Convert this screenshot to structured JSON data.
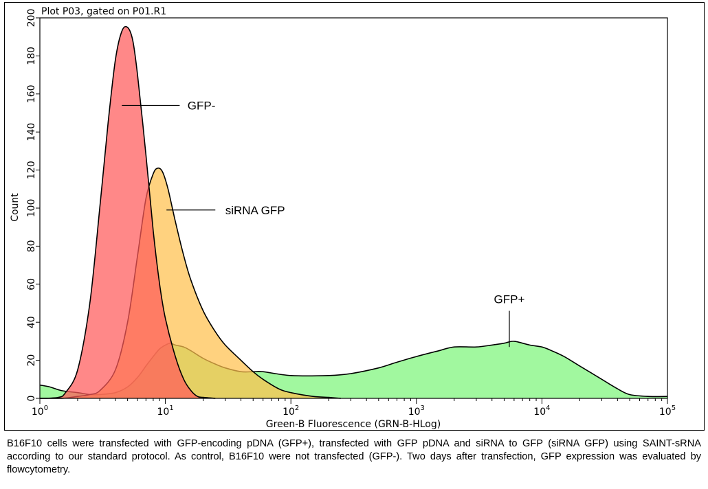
{
  "chart_data": {
    "type": "area",
    "title": "Plot P03, gated on P01.R1",
    "xlabel": "Green-B Fluorescence (GRN-B-HLog)",
    "ylabel": "Count",
    "x_scale": "log",
    "xlim": [
      1,
      100000
    ],
    "ylim": [
      0,
      200
    ],
    "x_ticks": [
      {
        "base": "10",
        "exp": "0"
      },
      {
        "base": "10",
        "exp": "1"
      },
      {
        "base": "10",
        "exp": "2"
      },
      {
        "base": "10",
        "exp": "3"
      },
      {
        "base": "10",
        "exp": "4"
      },
      {
        "base": "10",
        "exp": "5"
      }
    ],
    "y_ticks": [
      "0",
      "20",
      "40",
      "60",
      "80",
      "100",
      "120",
      "140",
      "160",
      "180",
      "200"
    ],
    "grid": false,
    "series": [
      {
        "name": "GFP+",
        "color": "#7df57a",
        "x": [
          1,
          1.2,
          1.5,
          2,
          2.5,
          3,
          4,
          5,
          6,
          7,
          8,
          9,
          10,
          11,
          12,
          14,
          16,
          20,
          25,
          30,
          40,
          50,
          60,
          100,
          200,
          300,
          500,
          700,
          1000,
          1500,
          2000,
          3000,
          4000,
          5000,
          6000,
          8000,
          10000,
          12000,
          15000,
          20000,
          30000,
          40000,
          50000,
          70000,
          100000
        ],
        "values": [
          7,
          6,
          4,
          3,
          2,
          2,
          3,
          6,
          11,
          17,
          22,
          26,
          28,
          29,
          28,
          27,
          25,
          21,
          18,
          16,
          14,
          14,
          14,
          12,
          12,
          13,
          16,
          19,
          22,
          25,
          27,
          27,
          28,
          29,
          30,
          28,
          27,
          25,
          22,
          17,
          10,
          5,
          2,
          1,
          1
        ]
      },
      {
        "name": "siRNA GFP",
        "color": "#ffc04d",
        "x": [
          1,
          1.5,
          2,
          2.5,
          3,
          4,
          5,
          6,
          7,
          8,
          8.7,
          9.5,
          10.5,
          12,
          14,
          16,
          20,
          25,
          30,
          40,
          50,
          60,
          80,
          100,
          150,
          200,
          250
        ],
        "values": [
          0,
          0,
          1,
          2,
          4,
          15,
          40,
          75,
          105,
          118,
          121,
          119,
          110,
          93,
          75,
          62,
          46,
          35,
          28,
          20,
          14,
          10,
          5,
          3,
          1,
          0.5,
          0
        ]
      },
      {
        "name": "GFP-",
        "color": "#ff5a5a",
        "x": [
          1,
          1.4,
          1.6,
          2,
          2.5,
          3,
          3.5,
          4,
          4.5,
          5,
          5.5,
          6,
          7,
          8,
          9,
          10,
          12,
          14,
          16,
          18,
          20,
          25
        ],
        "values": [
          0,
          0.5,
          3,
          15,
          50,
          100,
          145,
          178,
          193,
          195,
          188,
          170,
          128,
          88,
          60,
          42,
          22,
          10,
          4,
          1,
          0.5,
          0
        ]
      }
    ],
    "annotations": [
      {
        "text": "GFP-"
      },
      {
        "text": "siRNA GFP"
      },
      {
        "text": "GFP+"
      }
    ]
  },
  "caption": "B16F10 cells were transfected with GFP-encoding pDNA (GFP+), transfected with GFP pDNA and siRNA to GFP (siRNA GFP) using SAINT-sRNA according to our standard protocol. As control, B16F10 were not transfected (GFP-). Two days after transfection, GFP expression was evaluated by flowcytometry."
}
